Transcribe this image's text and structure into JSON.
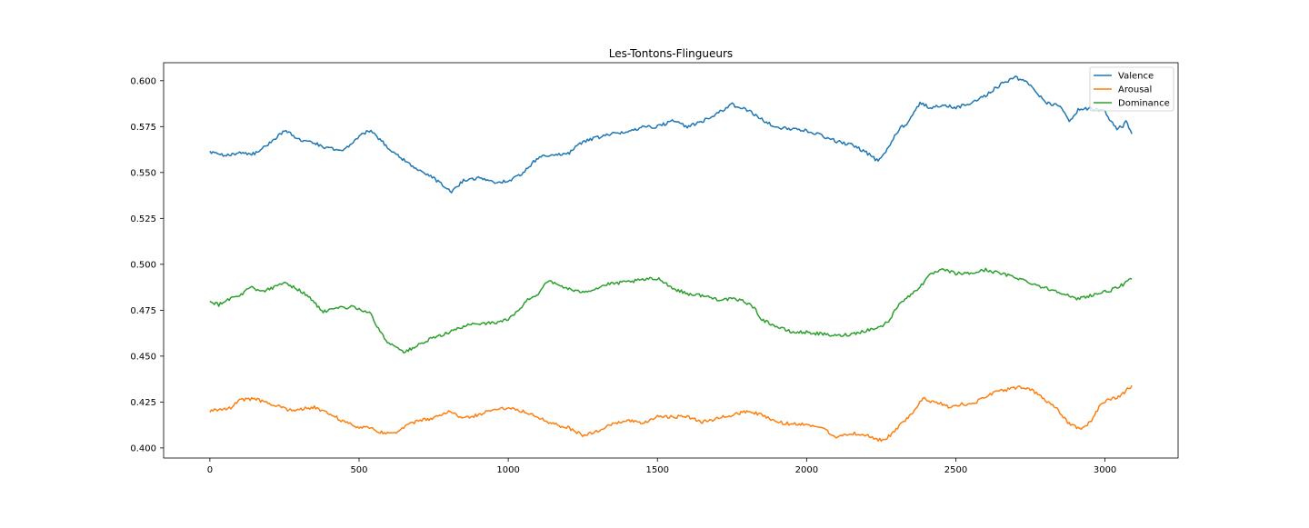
{
  "chart_data": {
    "type": "line",
    "title": "Les-Tontons-Flingueurs",
    "xlabel": "",
    "ylabel": "",
    "xlim": [
      -155,
      3245
    ],
    "ylim": [
      0.3945,
      0.6098
    ],
    "xticks": [
      0,
      500,
      1000,
      1500,
      2000,
      2500,
      3000
    ],
    "xtick_labels": [
      "0",
      "500",
      "1000",
      "1500",
      "2000",
      "2500",
      "3000"
    ],
    "yticks": [
      0.4,
      0.425,
      0.45,
      0.475,
      0.5,
      0.525,
      0.55,
      0.575,
      0.6
    ],
    "ytick_labels": [
      "0.400",
      "0.425",
      "0.450",
      "0.475",
      "0.500",
      "0.525",
      "0.550",
      "0.575",
      "0.600"
    ],
    "grid": false,
    "legend_position": "top-right",
    "series": [
      {
        "name": "Valence",
        "color": "#1f77b4",
        "x": [
          0,
          50,
          100,
          150,
          200,
          250,
          300,
          350,
          400,
          450,
          500,
          540,
          600,
          650,
          700,
          750,
          810,
          850,
          900,
          950,
          1000,
          1050,
          1100,
          1150,
          1200,
          1250,
          1300,
          1350,
          1400,
          1450,
          1500,
          1550,
          1600,
          1650,
          1700,
          1750,
          1800,
          1850,
          1900,
          1950,
          2000,
          2050,
          2100,
          2150,
          2200,
          2240,
          2280,
          2310,
          2340,
          2380,
          2420,
          2460,
          2500,
          2550,
          2600,
          2650,
          2700,
          2750,
          2800,
          2850,
          2880,
          2910,
          2950,
          3000,
          3020,
          3040,
          3060,
          3070,
          3090
        ],
        "values": [
          0.561,
          0.559,
          0.561,
          0.56,
          0.566,
          0.573,
          0.568,
          0.566,
          0.563,
          0.562,
          0.57,
          0.573,
          0.563,
          0.557,
          0.551,
          0.547,
          0.539,
          0.546,
          0.547,
          0.545,
          0.545,
          0.55,
          0.558,
          0.56,
          0.56,
          0.567,
          0.569,
          0.571,
          0.572,
          0.575,
          0.575,
          0.578,
          0.575,
          0.578,
          0.582,
          0.587,
          0.584,
          0.579,
          0.574,
          0.574,
          0.573,
          0.57,
          0.567,
          0.565,
          0.561,
          0.556,
          0.565,
          0.574,
          0.577,
          0.588,
          0.585,
          0.587,
          0.585,
          0.588,
          0.592,
          0.598,
          0.602,
          0.598,
          0.588,
          0.586,
          0.578,
          0.584,
          0.585,
          0.583,
          0.578,
          0.574,
          0.575,
          0.578,
          0.571
        ]
      },
      {
        "name": "Arousal",
        "color": "#ff7f0e",
        "x": [
          0,
          30,
          70,
          100,
          150,
          180,
          220,
          260,
          300,
          350,
          400,
          440,
          470,
          500,
          530,
          560,
          600,
          630,
          660,
          700,
          750,
          800,
          850,
          900,
          950,
          1000,
          1050,
          1100,
          1150,
          1200,
          1250,
          1300,
          1350,
          1400,
          1450,
          1500,
          1550,
          1600,
          1650,
          1700,
          1750,
          1800,
          1850,
          1900,
          1950,
          2000,
          2050,
          2100,
          2150,
          2200,
          2230,
          2260,
          2300,
          2330,
          2360,
          2390,
          2420,
          2450,
          2480,
          2520,
          2560,
          2600,
          2640,
          2680,
          2720,
          2760,
          2800,
          2840,
          2880,
          2920,
          2950,
          2980,
          3010,
          3040,
          3070,
          3090
        ],
        "values": [
          0.42,
          0.421,
          0.422,
          0.426,
          0.427,
          0.425,
          0.423,
          0.421,
          0.421,
          0.422,
          0.419,
          0.415,
          0.413,
          0.411,
          0.412,
          0.409,
          0.408,
          0.409,
          0.412,
          0.415,
          0.416,
          0.42,
          0.416,
          0.418,
          0.421,
          0.422,
          0.42,
          0.417,
          0.413,
          0.411,
          0.407,
          0.409,
          0.413,
          0.415,
          0.413,
          0.417,
          0.417,
          0.417,
          0.414,
          0.416,
          0.418,
          0.42,
          0.418,
          0.414,
          0.413,
          0.413,
          0.411,
          0.406,
          0.408,
          0.407,
          0.405,
          0.404,
          0.41,
          0.415,
          0.42,
          0.427,
          0.425,
          0.424,
          0.422,
          0.424,
          0.424,
          0.428,
          0.431,
          0.432,
          0.433,
          0.431,
          0.426,
          0.421,
          0.413,
          0.41,
          0.414,
          0.422,
          0.427,
          0.427,
          0.431,
          0.434
        ]
      },
      {
        "name": "Dominance",
        "color": "#2ca02c",
        "x": [
          0,
          30,
          60,
          100,
          140,
          170,
          210,
          250,
          300,
          340,
          380,
          430,
          480,
          510,
          540,
          570,
          600,
          630,
          650,
          700,
          750,
          800,
          850,
          900,
          950,
          1000,
          1030,
          1060,
          1100,
          1130,
          1180,
          1230,
          1280,
          1330,
          1380,
          1430,
          1470,
          1510,
          1550,
          1600,
          1650,
          1700,
          1750,
          1790,
          1820,
          1850,
          1900,
          1950,
          2000,
          2050,
          2100,
          2150,
          2200,
          2250,
          2280,
          2310,
          2340,
          2380,
          2420,
          2460,
          2500,
          2550,
          2600,
          2650,
          2700,
          2750,
          2800,
          2850,
          2900,
          2950,
          3000,
          3040,
          3070,
          3090
        ],
        "values": [
          0.48,
          0.478,
          0.481,
          0.483,
          0.488,
          0.485,
          0.487,
          0.49,
          0.486,
          0.481,
          0.474,
          0.476,
          0.477,
          0.475,
          0.473,
          0.463,
          0.457,
          0.455,
          0.452,
          0.456,
          0.46,
          0.463,
          0.466,
          0.468,
          0.468,
          0.47,
          0.474,
          0.48,
          0.484,
          0.491,
          0.488,
          0.485,
          0.486,
          0.489,
          0.49,
          0.491,
          0.492,
          0.492,
          0.487,
          0.484,
          0.483,
          0.481,
          0.481,
          0.48,
          0.477,
          0.47,
          0.466,
          0.463,
          0.463,
          0.462,
          0.461,
          0.462,
          0.464,
          0.466,
          0.47,
          0.479,
          0.482,
          0.488,
          0.495,
          0.497,
          0.495,
          0.495,
          0.497,
          0.495,
          0.493,
          0.49,
          0.487,
          0.485,
          0.481,
          0.483,
          0.485,
          0.487,
          0.49,
          0.492
        ]
      }
    ]
  }
}
